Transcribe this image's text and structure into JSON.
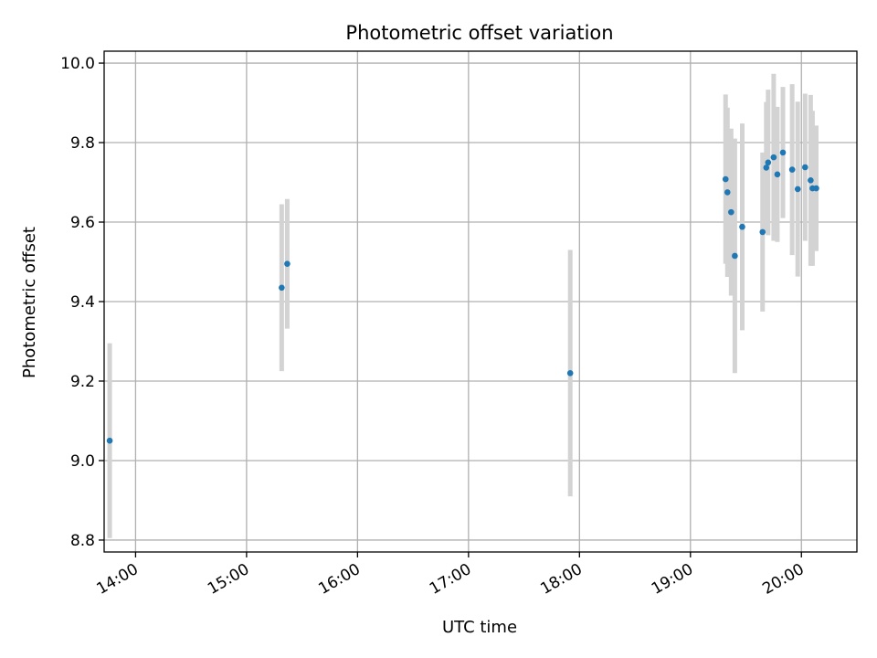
{
  "chart_data": {
    "type": "scatter",
    "title": "Photometric offset variation",
    "xlabel": "UTC time",
    "ylabel": "Photometric offset",
    "x_axis_type": "time",
    "xlim": [
      "13:43",
      "20:30"
    ],
    "ylim": [
      8.77,
      10.03
    ],
    "grid": true,
    "x_ticks": [
      "14:00",
      "15:00",
      "16:00",
      "17:00",
      "18:00",
      "19:00",
      "20:00"
    ],
    "y_ticks": [
      "8.8",
      "9.0",
      "9.2",
      "9.4",
      "9.6",
      "9.8",
      "10.0"
    ],
    "colors": {
      "points": "#1f77b4",
      "error_bars": "#d3d3d3",
      "grid": "#b0b0b0"
    },
    "series": [
      {
        "points": [
          {
            "x": "13:46",
            "y": 9.05,
            "err": 0.245
          },
          {
            "x": "15:19",
            "y": 9.435,
            "err": 0.21
          },
          {
            "x": "15:22",
            "y": 9.495,
            "err": 0.163
          },
          {
            "x": "17:55",
            "y": 9.22,
            "err": 0.31
          },
          {
            "x": "19:19",
            "y": 9.708,
            "err": 0.213
          },
          {
            "x": "19:20",
            "y": 9.675,
            "err": 0.213
          },
          {
            "x": "19:22",
            "y": 9.625,
            "err": 0.21
          },
          {
            "x": "19:24",
            "y": 9.515,
            "err": 0.295
          },
          {
            "x": "19:28",
            "y": 9.588,
            "err": 0.26
          },
          {
            "x": "19:39",
            "y": 9.575,
            "err": 0.2
          },
          {
            "x": "19:41",
            "y": 9.737,
            "err": 0.165
          },
          {
            "x": "19:42",
            "y": 9.75,
            "err": 0.183
          },
          {
            "x": "19:45",
            "y": 9.763,
            "err": 0.21
          },
          {
            "x": "19:47",
            "y": 9.72,
            "err": 0.17
          },
          {
            "x": "19:50",
            "y": 9.775,
            "err": 0.165
          },
          {
            "x": "19:55",
            "y": 9.732,
            "err": 0.215
          },
          {
            "x": "19:58",
            "y": 9.683,
            "err": 0.22
          },
          {
            "x": "20:02",
            "y": 9.738,
            "err": 0.185
          },
          {
            "x": "20:05",
            "y": 9.705,
            "err": 0.215
          },
          {
            "x": "20:06",
            "y": 9.685,
            "err": 0.195
          },
          {
            "x": "20:08",
            "y": 9.685,
            "err": 0.158
          }
        ]
      }
    ]
  }
}
